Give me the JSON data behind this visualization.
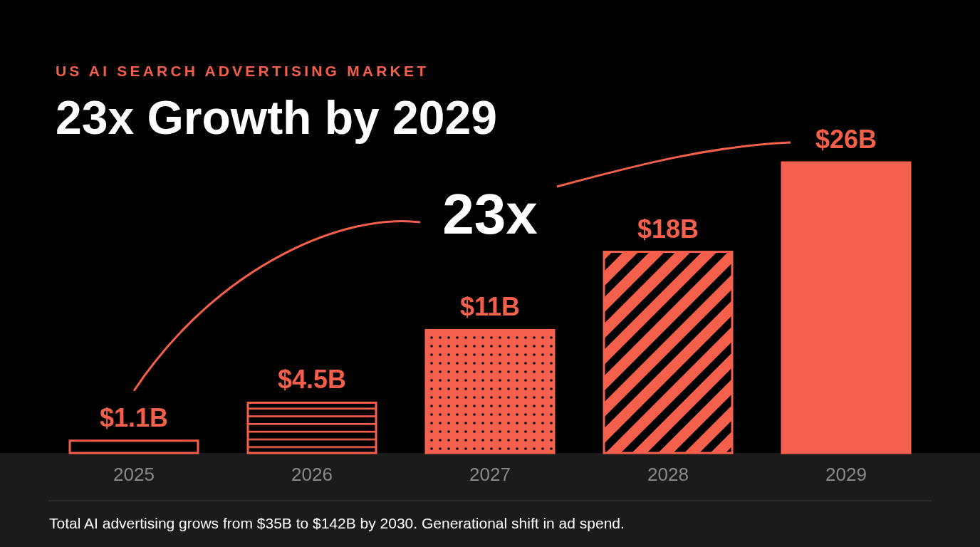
{
  "chart_data": {
    "type": "bar",
    "subtitle": "US AI SEARCH ADVERTISING MARKET",
    "title": "23x Growth by 2029",
    "categories": [
      "2025",
      "2026",
      "2027",
      "2028",
      "2029"
    ],
    "values": [
      1.1,
      4.5,
      11,
      18,
      26
    ],
    "value_labels": [
      "$1.1B",
      "$4.5B",
      "$11B",
      "$18B",
      "$26B"
    ],
    "color": "#f4604c",
    "annotations": [
      "23x",
      "Total AI advertising grows from $35B to $142B by 2030. Generational shift in ad spend."
    ]
  }
}
